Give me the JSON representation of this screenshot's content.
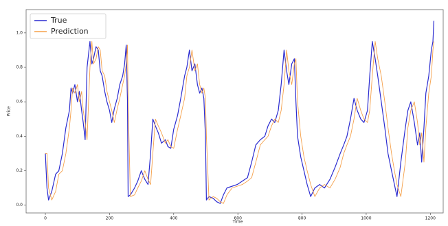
{
  "chart_data": {
    "type": "line",
    "xlabel": "Time",
    "ylabel": "Price",
    "x": [
      0,
      5,
      10,
      20,
      32,
      42,
      53,
      64,
      75,
      80,
      85,
      92,
      100,
      106,
      113,
      118,
      124,
      130,
      139,
      145,
      150,
      158,
      165,
      171,
      177,
      185,
      192,
      200,
      207,
      215,
      224,
      232,
      241,
      247,
      252,
      256,
      258,
      265,
      278,
      288,
      299,
      310,
      320,
      328,
      335,
      343,
      352,
      362,
      374,
      382,
      391,
      400,
      412,
      422,
      434,
      441,
      449,
      457,
      466,
      474,
      481,
      488,
      494,
      499,
      502,
      510,
      523,
      534,
      545,
      555,
      566,
      582,
      598,
      614,
      630,
      643,
      656,
      670,
      684,
      694,
      705,
      715,
      726,
      735,
      744,
      752,
      759,
      768,
      776,
      781,
      786,
      796,
      806,
      816,
      827,
      840,
      855,
      870,
      887,
      903,
      919,
      930,
      940,
      951,
      962,
      972,
      983,
      993,
      1004,
      1011,
      1019,
      1028,
      1036,
      1047,
      1058,
      1068,
      1079,
      1088,
      1096,
      1108,
      1122,
      1130,
      1139,
      1150,
      1160,
      1167,
      1173,
      1180,
      1186,
      1195,
      1203,
      1208,
      1211
    ],
    "series": [
      {
        "name": "True",
        "color": "#2b2bd0",
        "values": [
          0.3,
          0.1,
          0.03,
          0.08,
          0.18,
          0.2,
          0.3,
          0.45,
          0.55,
          0.68,
          0.65,
          0.7,
          0.6,
          0.66,
          0.55,
          0.48,
          0.38,
          0.8,
          0.95,
          0.82,
          0.85,
          0.92,
          0.9,
          0.78,
          0.75,
          0.66,
          0.6,
          0.55,
          0.48,
          0.56,
          0.62,
          0.7,
          0.75,
          0.82,
          0.93,
          0.6,
          0.05,
          0.06,
          0.1,
          0.14,
          0.2,
          0.15,
          0.12,
          0.3,
          0.5,
          0.46,
          0.42,
          0.36,
          0.38,
          0.34,
          0.33,
          0.44,
          0.52,
          0.62,
          0.75,
          0.8,
          0.9,
          0.78,
          0.82,
          0.7,
          0.65,
          0.68,
          0.62,
          0.4,
          0.03,
          0.05,
          0.04,
          0.02,
          0.01,
          0.06,
          0.1,
          0.11,
          0.12,
          0.14,
          0.16,
          0.25,
          0.35,
          0.38,
          0.4,
          0.46,
          0.5,
          0.48,
          0.55,
          0.7,
          0.9,
          0.78,
          0.7,
          0.82,
          0.85,
          0.6,
          0.4,
          0.28,
          0.2,
          0.12,
          0.05,
          0.1,
          0.12,
          0.1,
          0.15,
          0.22,
          0.3,
          0.35,
          0.4,
          0.5,
          0.62,
          0.55,
          0.5,
          0.48,
          0.55,
          0.75,
          0.95,
          0.85,
          0.75,
          0.6,
          0.45,
          0.3,
          0.2,
          0.12,
          0.05,
          0.25,
          0.45,
          0.55,
          0.6,
          0.48,
          0.35,
          0.42,
          0.25,
          0.45,
          0.65,
          0.75,
          0.9,
          0.95,
          1.07
        ]
      },
      {
        "name": "Prediction",
        "color": "#f5a04a",
        "values": [
          0.3,
          0.3,
          0.1,
          0.03,
          0.08,
          0.18,
          0.2,
          0.3,
          0.45,
          0.55,
          0.68,
          0.65,
          0.7,
          0.6,
          0.66,
          0.55,
          0.48,
          0.38,
          0.8,
          0.95,
          0.82,
          0.85,
          0.92,
          0.9,
          0.78,
          0.75,
          0.66,
          0.6,
          0.55,
          0.48,
          0.56,
          0.62,
          0.7,
          0.75,
          0.82,
          0.93,
          0.6,
          0.05,
          0.06,
          0.1,
          0.14,
          0.2,
          0.15,
          0.12,
          0.3,
          0.5,
          0.46,
          0.42,
          0.36,
          0.38,
          0.34,
          0.33,
          0.44,
          0.52,
          0.62,
          0.75,
          0.8,
          0.9,
          0.78,
          0.82,
          0.7,
          0.65,
          0.68,
          0.62,
          0.4,
          0.03,
          0.05,
          0.04,
          0.02,
          0.01,
          0.06,
          0.1,
          0.11,
          0.12,
          0.14,
          0.16,
          0.25,
          0.35,
          0.38,
          0.4,
          0.46,
          0.5,
          0.48,
          0.55,
          0.7,
          0.9,
          0.78,
          0.7,
          0.82,
          0.85,
          0.6,
          0.4,
          0.28,
          0.2,
          0.12,
          0.05,
          0.1,
          0.12,
          0.1,
          0.15,
          0.22,
          0.3,
          0.35,
          0.4,
          0.5,
          0.62,
          0.55,
          0.5,
          0.48,
          0.55,
          0.75,
          0.95,
          0.85,
          0.75,
          0.6,
          0.45,
          0.3,
          0.2,
          0.12,
          0.05,
          0.25,
          0.45,
          0.55,
          0.6,
          0.48,
          0.35,
          0.42,
          0.25,
          0.45,
          0.65,
          0.75,
          0.9,
          0.95
        ]
      }
    ],
    "xlim": [
      -60,
      1240
    ],
    "ylim": [
      -0.045,
      1.135
    ],
    "xticks": [
      0,
      200,
      400,
      600,
      800,
      1000,
      1200
    ],
    "yticks": [
      {
        "value": 0,
        "label": "0.0"
      },
      0.2,
      0.4,
      0.6,
      0.8,
      {
        "value": 1,
        "label": "1.0"
      }
    ],
    "legend": "upper left"
  }
}
